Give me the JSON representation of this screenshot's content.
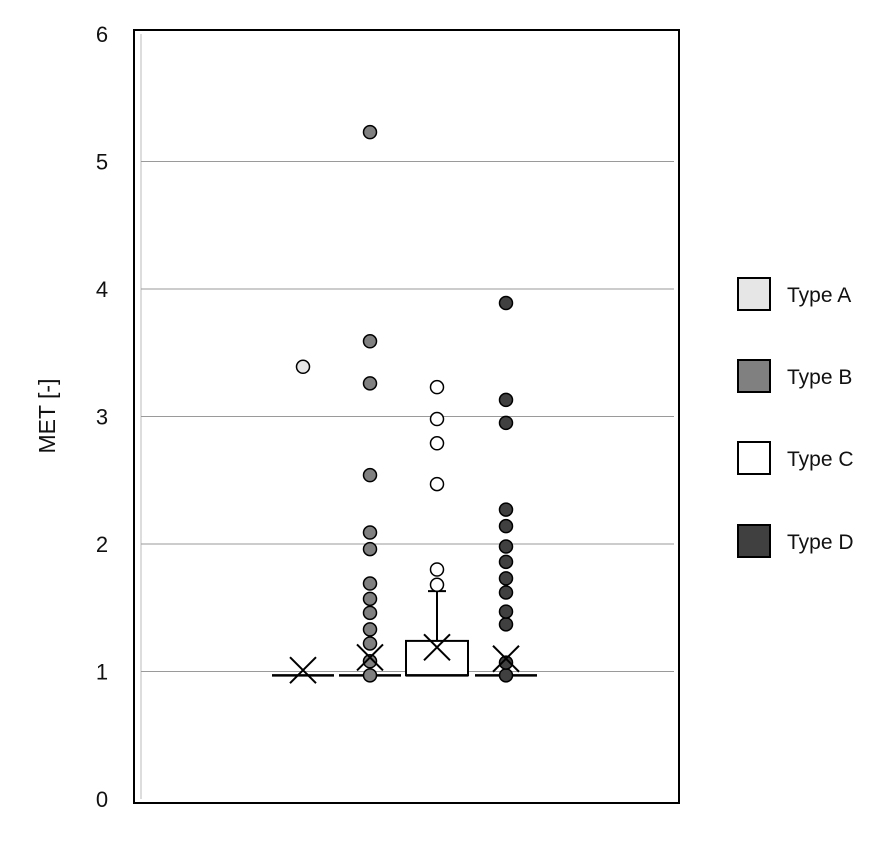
{
  "chart_data": {
    "type": "box",
    "ylabel": "MET [-]",
    "ylim": [
      0,
      6
    ],
    "yticks": [
      0,
      1,
      2,
      3,
      4,
      5,
      6
    ],
    "grid": true,
    "legend_position": "right",
    "series": [
      {
        "name": "Type A",
        "color": "#e6e6e6",
        "q1": 0.97,
        "median": 0.97,
        "q3": 0.97,
        "whisker_low": 0.97,
        "whisker_high": 0.97,
        "mean": 1.01,
        "outliers": [
          3.39
        ]
      },
      {
        "name": "Type B",
        "color": "#808080",
        "q1": 0.97,
        "median": 0.97,
        "q3": 0.97,
        "whisker_low": 0.97,
        "whisker_high": 0.97,
        "mean": 1.11,
        "outliers": [
          0.97,
          1.08,
          1.22,
          1.33,
          1.46,
          1.57,
          1.69,
          1.96,
          2.09,
          2.54,
          3.26,
          3.59,
          5.23
        ]
      },
      {
        "name": "Type C",
        "color": "#ffffff",
        "q1": 0.97,
        "median": 0.97,
        "q3": 1.24,
        "whisker_low": 0.97,
        "whisker_high": 1.63,
        "mean": 1.19,
        "outliers": [
          1.68,
          1.8,
          2.47,
          2.79,
          2.98,
          3.23
        ]
      },
      {
        "name": "Type D",
        "color": "#404040",
        "q1": 0.97,
        "median": 0.97,
        "q3": 0.97,
        "whisker_low": 0.97,
        "whisker_high": 0.97,
        "mean": 1.1,
        "outliers": [
          0.97,
          1.07,
          1.37,
          1.47,
          1.62,
          1.73,
          1.86,
          1.98,
          2.14,
          2.27,
          2.95,
          3.13,
          3.89
        ]
      }
    ]
  }
}
